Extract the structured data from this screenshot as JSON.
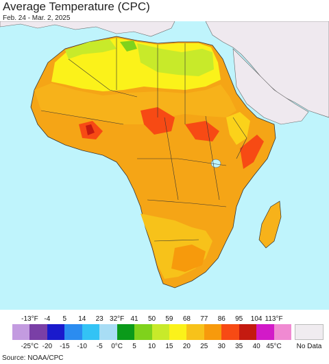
{
  "header": {
    "title": "Average Temperature (CPC)",
    "date_range": "Feb. 24 - Mar. 2, 2025"
  },
  "legend": {
    "colors": [
      "#c39be0",
      "#7a3fa6",
      "#1a1acc",
      "#2b8cf0",
      "#33c3f5",
      "#a8ddf5",
      "#0a9a1a",
      "#7fd21c",
      "#c8ea2a",
      "#fbf21a",
      "#f7c21a",
      "#f79a0c",
      "#f74a14",
      "#c41a10",
      "#d21ac8",
      "#f08ad2"
    ],
    "fahrenheit_ticks": [
      "-13°F",
      "-4",
      "5",
      "14",
      "23",
      "32°F",
      "41",
      "50",
      "59",
      "68",
      "77",
      "86",
      "95",
      "104",
      "113°F"
    ],
    "celsius_ticks": [
      "-25°C",
      "-20",
      "-15",
      "-10",
      "-5",
      "0°C",
      "5",
      "10",
      "15",
      "20",
      "25",
      "30",
      "35",
      "40",
      "45°C"
    ],
    "no_data_label": "No Data",
    "no_data_color": "#f0ecf0"
  },
  "map": {
    "ocean_color": "#bff4fc",
    "no_data_land_color": "#efe9ef"
  },
  "footer": {
    "source": "Source: NOAA/CPC"
  }
}
